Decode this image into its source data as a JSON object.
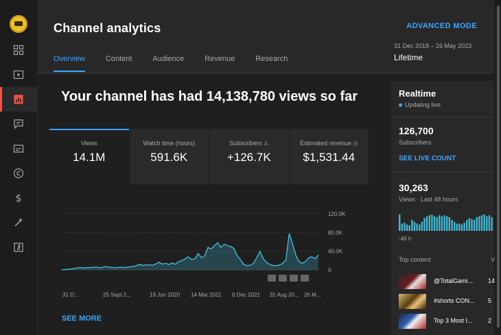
{
  "header": {
    "title": "Channel analytics",
    "advanced_mode": "ADVANCED MODE",
    "date_range": "31 Dec 2018 – 26 May 2023",
    "period": "Lifetime",
    "tabs": [
      {
        "label": "Overview",
        "active": true
      },
      {
        "label": "Content",
        "active": false
      },
      {
        "label": "Audience",
        "active": false
      },
      {
        "label": "Revenue",
        "active": false
      },
      {
        "label": "Research",
        "active": false
      }
    ]
  },
  "sidebar": {
    "icons": [
      "dashboard-icon",
      "content-icon",
      "analytics-icon",
      "comments-icon",
      "subtitles-icon",
      "copyright-icon",
      "earn-icon",
      "customization-icon",
      "audio-library-icon"
    ],
    "active": "analytics-icon"
  },
  "main": {
    "headline": "Your channel has had 14,138,780 views so far",
    "cards": [
      {
        "label": "Views",
        "value": "14.1M"
      },
      {
        "label": "Watch time (hours)",
        "value": "591.6K"
      },
      {
        "label": "Subscribers",
        "value": "+126.7K"
      },
      {
        "label": "Estimated revenue",
        "value": "$1,531.44"
      }
    ],
    "see_more": "SEE MORE"
  },
  "chart_data": {
    "type": "line",
    "x_ticks": [
      "31 D...",
      "25 Sept 2...",
      "19 Jun 2020",
      "14 Mar 2021",
      "6 Dec 2021",
      "31 Aug 20...",
      "26 M..."
    ],
    "y_ticks": [
      "120.0K",
      "80.0K",
      "40.0K",
      "0"
    ],
    "ylim": [
      0,
      120000
    ],
    "grid": true,
    "color": "#41b8d5",
    "series": [
      {
        "values": [
          500,
          800,
          1200,
          2000,
          3500,
          4500,
          5000,
          4000,
          5200,
          4800,
          6000,
          5500,
          4500,
          6500,
          7000,
          5500,
          5000,
          4800,
          6200,
          5000,
          5500,
          6800,
          7500,
          9000,
          12000,
          9500,
          11000,
          10500,
          9800,
          13000,
          16500,
          12500,
          14000,
          11500,
          15000,
          12000,
          18000,
          20000,
          24000,
          28000,
          22000,
          24000,
          35000,
          26000,
          30000,
          48000,
          45000,
          52000,
          58000,
          48000,
          55000,
          52000,
          50000,
          46000,
          30000,
          22000,
          12000,
          9000,
          10000,
          14000,
          26000,
          40000,
          24000,
          16000,
          12000,
          9500,
          9000,
          10500,
          14000,
          22000,
          78000,
          56000,
          32000,
          18000,
          14000,
          18000,
          26000,
          28000,
          24000,
          32000
        ]
      }
    ]
  },
  "realtime": {
    "title": "Realtime",
    "status": "Updating live",
    "subscribers_value": "126,700",
    "subscribers_label": "Subscribers",
    "see_live_count": "SEE LIVE COUNT",
    "views_value": "30,263",
    "views_label": "Views · Last 48 hours",
    "axis_label": "-48 h",
    "top_content_label": "Top content",
    "top_content_col": "V",
    "spark": [
      18,
      8,
      9,
      7,
      6,
      12,
      10,
      8,
      7,
      10,
      14,
      16,
      17,
      18,
      16,
      15,
      17,
      16,
      17,
      16,
      15,
      12,
      10,
      8,
      8,
      7,
      9,
      12,
      14,
      13,
      12,
      15,
      16,
      17,
      18,
      16,
      17,
      15
    ],
    "top_content": [
      {
        "title": "@TotalGami...",
        "value": "14"
      },
      {
        "title": "#shorts CON...",
        "value": "5"
      },
      {
        "title": "Top 3 Most I...",
        "value": "2"
      }
    ]
  },
  "colors": {
    "accent": "#3ea6ff",
    "active_nav": "#ff4e45",
    "chart": "#41b8d5"
  }
}
